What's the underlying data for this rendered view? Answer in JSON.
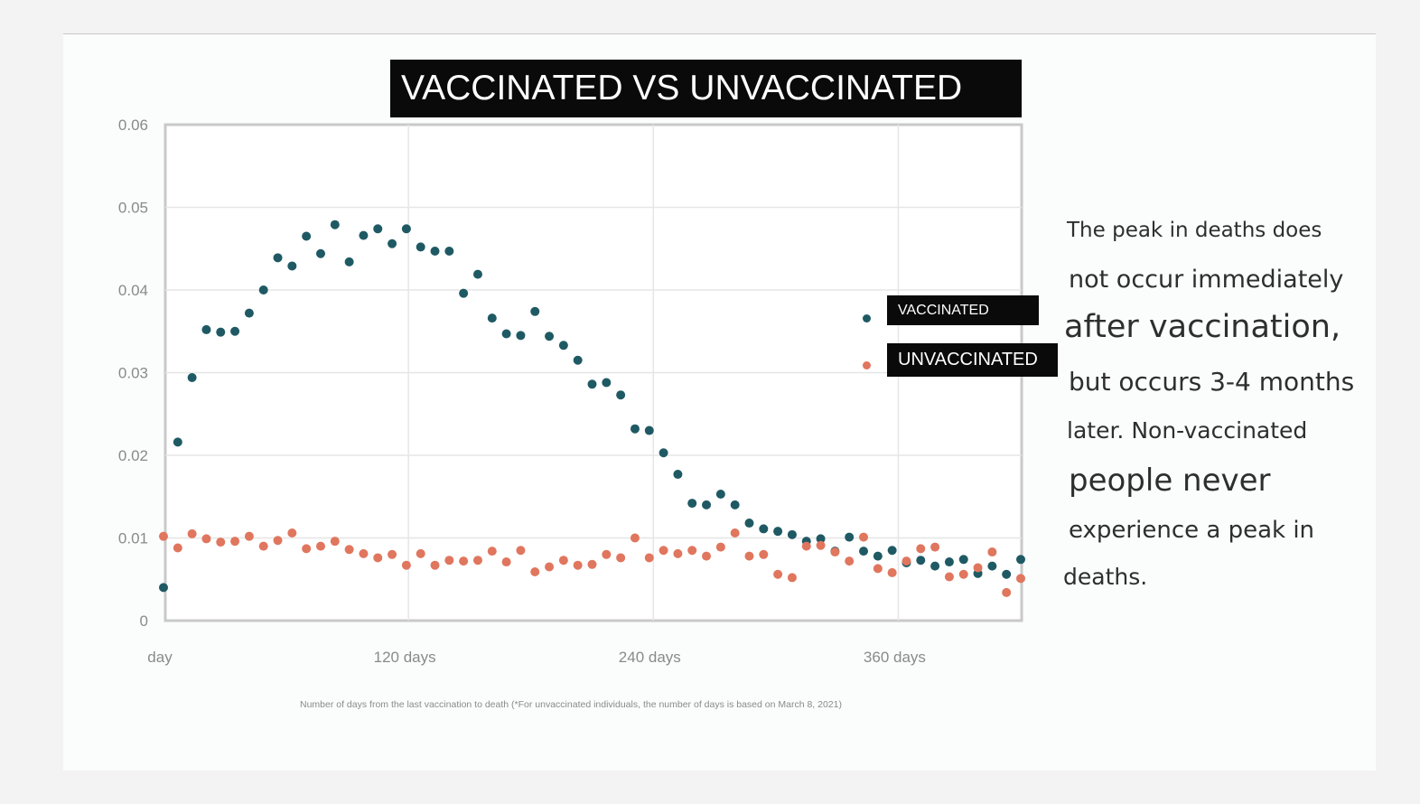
{
  "chart_data": {
    "type": "scatter",
    "title": "VACCINATED VS UNVACCINATED",
    "xlabel": "Number of days from the last vaccination to death (*For unvaccinated individuals, the number of days is based on March 8, 2021)",
    "ylabel": "",
    "xlim": [
      -2,
      418
    ],
    "ylim": [
      0,
      0.06
    ],
    "y_ticks": [
      {
        "value": 0,
        "label": "0"
      },
      {
        "value": 0.01,
        "label": "0.01"
      },
      {
        "value": 0.02,
        "label": "0.02"
      },
      {
        "value": 0.03,
        "label": "0.03"
      },
      {
        "value": 0.04,
        "label": "0.04"
      },
      {
        "value": 0.05,
        "label": "0.05"
      },
      {
        "value": 0.06,
        "label": "0.06"
      }
    ],
    "x_ticks": [
      {
        "value": 0,
        "label": "day"
      },
      {
        "value": 120,
        "label": "120 days"
      },
      {
        "value": 240,
        "label": "240 days"
      },
      {
        "value": 360,
        "label": "360 days"
      }
    ],
    "grid": true,
    "legend_position": "right",
    "series": [
      {
        "name": "VACCINATED",
        "color": "#1f5a64",
        "points": [
          [
            0,
            0.004
          ],
          [
            7,
            0.0216
          ],
          [
            14,
            0.0294
          ],
          [
            21,
            0.0352
          ],
          [
            28,
            0.0349
          ],
          [
            35,
            0.035
          ],
          [
            42,
            0.0372
          ],
          [
            49,
            0.04
          ],
          [
            56,
            0.0439
          ],
          [
            63,
            0.0429
          ],
          [
            70,
            0.0465
          ],
          [
            77,
            0.0444
          ],
          [
            84,
            0.0479
          ],
          [
            91,
            0.0434
          ],
          [
            98,
            0.0466
          ],
          [
            105,
            0.0474
          ],
          [
            112,
            0.0456
          ],
          [
            119,
            0.0474
          ],
          [
            126,
            0.0452
          ],
          [
            133,
            0.0447
          ],
          [
            140,
            0.0447
          ],
          [
            147,
            0.0396
          ],
          [
            154,
            0.0419
          ],
          [
            161,
            0.0366
          ],
          [
            168,
            0.0347
          ],
          [
            175,
            0.0345
          ],
          [
            182,
            0.0374
          ],
          [
            189,
            0.0344
          ],
          [
            196,
            0.0333
          ],
          [
            203,
            0.0315
          ],
          [
            210,
            0.0286
          ],
          [
            217,
            0.0288
          ],
          [
            224,
            0.0273
          ],
          [
            231,
            0.0232
          ],
          [
            238,
            0.023
          ],
          [
            245,
            0.0203
          ],
          [
            252,
            0.0177
          ],
          [
            259,
            0.0142
          ],
          [
            266,
            0.014
          ],
          [
            273,
            0.0153
          ],
          [
            280,
            0.014
          ],
          [
            287,
            0.0118
          ],
          [
            294,
            0.0111
          ],
          [
            301,
            0.0108
          ],
          [
            308,
            0.0104
          ],
          [
            315,
            0.0096
          ],
          [
            322,
            0.0099
          ],
          [
            329,
            0.0084
          ],
          [
            336,
            0.0101
          ],
          [
            343,
            0.0084
          ],
          [
            350,
            0.0078
          ],
          [
            357,
            0.0085
          ],
          [
            364,
            0.007
          ],
          [
            371,
            0.0073
          ],
          [
            378,
            0.0066
          ],
          [
            385,
            0.0071
          ],
          [
            392,
            0.0074
          ],
          [
            399,
            0.0057
          ],
          [
            406,
            0.0066
          ],
          [
            413,
            0.0056
          ],
          [
            420,
            0.0074
          ]
        ]
      },
      {
        "name": "UNVACCINATED",
        "color": "#e0765e",
        "points": [
          [
            0,
            0.0102
          ],
          [
            7,
            0.0088
          ],
          [
            14,
            0.0105
          ],
          [
            21,
            0.0099
          ],
          [
            28,
            0.0095
          ],
          [
            35,
            0.0096
          ],
          [
            42,
            0.0102
          ],
          [
            49,
            0.009
          ],
          [
            56,
            0.0097
          ],
          [
            63,
            0.0106
          ],
          [
            70,
            0.0087
          ],
          [
            77,
            0.009
          ],
          [
            84,
            0.0096
          ],
          [
            91,
            0.0086
          ],
          [
            98,
            0.0081
          ],
          [
            105,
            0.0076
          ],
          [
            112,
            0.008
          ],
          [
            119,
            0.0067
          ],
          [
            126,
            0.0081
          ],
          [
            133,
            0.0067
          ],
          [
            140,
            0.0073
          ],
          [
            147,
            0.0072
          ],
          [
            154,
            0.0073
          ],
          [
            161,
            0.0084
          ],
          [
            168,
            0.0071
          ],
          [
            175,
            0.0085
          ],
          [
            182,
            0.0059
          ],
          [
            189,
            0.0065
          ],
          [
            196,
            0.0073
          ],
          [
            203,
            0.0067
          ],
          [
            210,
            0.0068
          ],
          [
            217,
            0.008
          ],
          [
            224,
            0.0076
          ],
          [
            231,
            0.01
          ],
          [
            238,
            0.0076
          ],
          [
            245,
            0.0085
          ],
          [
            252,
            0.0081
          ],
          [
            259,
            0.0085
          ],
          [
            266,
            0.0078
          ],
          [
            273,
            0.0089
          ],
          [
            280,
            0.0106
          ],
          [
            287,
            0.0078
          ],
          [
            294,
            0.008
          ],
          [
            301,
            0.0056
          ],
          [
            308,
            0.0052
          ],
          [
            315,
            0.009
          ],
          [
            322,
            0.0091
          ],
          [
            329,
            0.0083
          ],
          [
            336,
            0.0072
          ],
          [
            343,
            0.0101
          ],
          [
            350,
            0.0063
          ],
          [
            357,
            0.0058
          ],
          [
            364,
            0.0072
          ],
          [
            371,
            0.0087
          ],
          [
            378,
            0.0089
          ],
          [
            385,
            0.0053
          ],
          [
            392,
            0.0056
          ],
          [
            399,
            0.0064
          ],
          [
            406,
            0.0083
          ],
          [
            413,
            0.0034
          ],
          [
            420,
            0.0051
          ]
        ]
      }
    ]
  },
  "side_text": [
    "The peak in deaths does",
    "not occur immediately",
    "after vaccination,",
    "but occurs 3-4 months",
    "later. Non-vaccinated",
    "people never",
    "experience a peak in",
    "deaths."
  ],
  "colors": {
    "vaccinated": "#1f5a64",
    "unvaccinated": "#e0765e",
    "title_bg": "#0a0a0a",
    "title_text": "#ffffff"
  }
}
